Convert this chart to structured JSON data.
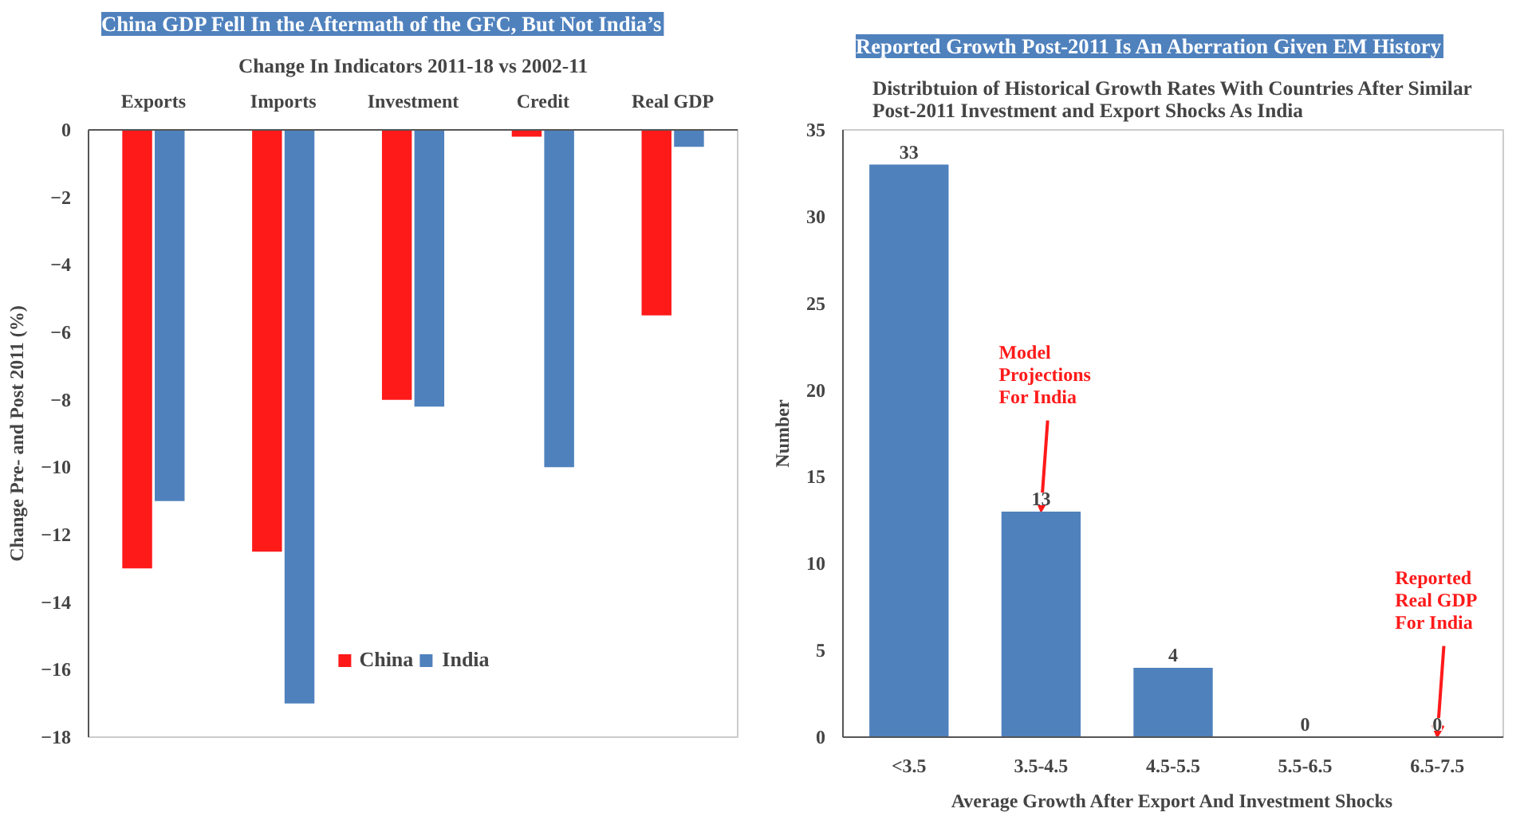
{
  "chart_data": [
    {
      "type": "bar",
      "title": "China GDP Fell In the Aftermath of the GFC, But Not India’s",
      "subtitle": "Change In Indicators 2011-18 vs 2002-11",
      "ylabel": "Change Pre- and Post 2011 (%)",
      "categories": [
        "Exports",
        "Imports",
        "Investment",
        "Credit",
        "Real GDP"
      ],
      "series": [
        {
          "name": "China",
          "color": "#ff1a1a",
          "values": [
            -13,
            -12.5,
            -8,
            -0.2,
            -5.5
          ]
        },
        {
          "name": "India",
          "color": "#4f81bd",
          "values": [
            -11,
            -17,
            -8.2,
            -10,
            -0.5
          ]
        }
      ],
      "ylim": [
        -18,
        0
      ],
      "yticks": [
        0,
        -2,
        -4,
        -6,
        -8,
        -10,
        -12,
        -14,
        -16,
        -18
      ],
      "grid": false,
      "legend": "bottom"
    },
    {
      "type": "bar",
      "title": "Reported Growth Post-2011 Is An Aberration Given EM History",
      "subtitle": "Distribtuion of Historical Growth Rates With Countries After Similar Post-2011 Investment and Export Shocks As India",
      "xlabel": "Average Growth After Export And Investment Shocks",
      "ylabel": "Number",
      "categories": [
        "<3.5",
        "3.5-4.5",
        "4.5-5.5",
        "5.5-6.5",
        "6.5-7.5"
      ],
      "values": [
        33,
        13,
        4,
        0,
        0
      ],
      "color": "#4f81bd",
      "data_labels": true,
      "ylim": [
        0,
        35
      ],
      "yticks": [
        0,
        5,
        10,
        15,
        20,
        25,
        30,
        35
      ],
      "grid": false,
      "annotations": [
        {
          "text": "Model Projections For India",
          "x": "3.5-4.5",
          "y": 13
        },
        {
          "text": "Reported Real GDP For India",
          "x": "6.5-7.5",
          "y": 0
        }
      ]
    }
  ]
}
